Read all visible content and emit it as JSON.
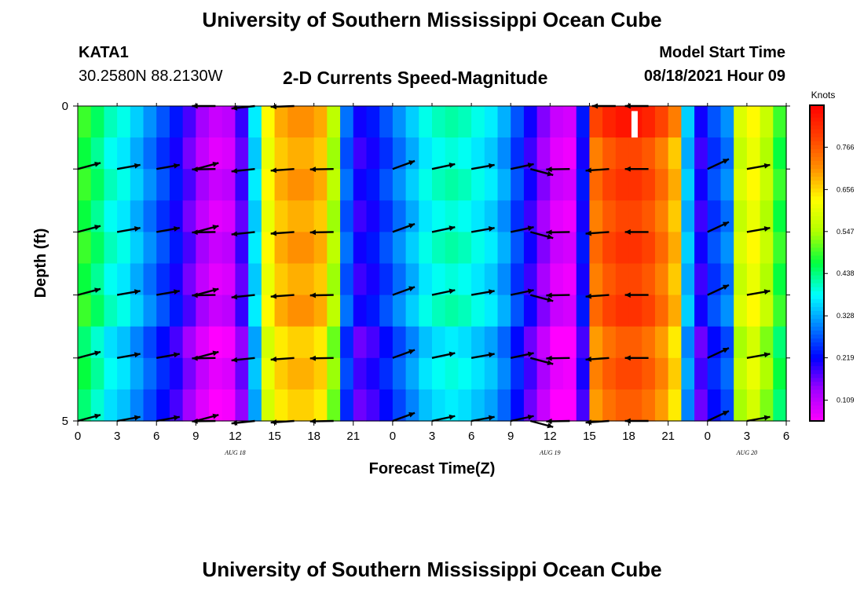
{
  "header": {
    "title": "University of Southern Mississippi Ocean Cube",
    "station": "KATA1",
    "coordinates": "30.2580N  88.2130W",
    "subtitle": "2-D Currents Speed-Magnitude",
    "model_label": "Model Start Time",
    "model_time": "08/18/2021 Hour 09"
  },
  "footer": {
    "title": "University of Southern Mississippi Ocean Cube"
  },
  "chart_data": {
    "type": "heatmap",
    "title": "2-D Currents Speed-Magnitude",
    "xlabel": "Forecast Time(Z)",
    "ylabel": "Depth (ft)",
    "x_ticks": [
      "0",
      "3",
      "6",
      "9",
      "12",
      "15",
      "18",
      "21",
      "0",
      "3",
      "6",
      "9",
      "12",
      "15",
      "18",
      "21",
      "0",
      "3",
      "6"
    ],
    "x_range_hours": [
      0,
      54
    ],
    "y_ticks": [
      "0",
      "5"
    ],
    "y_range_ft": [
      0,
      5
    ],
    "date_labels": [
      {
        "text": "AUG 18",
        "hour": 12
      },
      {
        "text": "AUG 19",
        "hour": 36
      },
      {
        "text": "AUG 20",
        "hour": 51
      }
    ],
    "colorbar": {
      "unit": "Knots",
      "ticks": [
        "0.109",
        "0.219",
        "0.328",
        "0.438",
        "0.547",
        "0.656",
        "0.766"
      ],
      "tick_values": [
        0.109,
        0.219,
        0.328,
        0.438,
        0.547,
        0.656,
        0.766
      ],
      "range": [
        0.055,
        0.875
      ]
    },
    "speed_by_hour": [
      0.48,
      0.44,
      0.4,
      0.38,
      0.34,
      0.3,
      0.26,
      0.22,
      0.17,
      0.12,
      0.09,
      0.1,
      0.18,
      0.36,
      0.62,
      0.68,
      0.7,
      0.7,
      0.68,
      0.55,
      0.28,
      0.2,
      0.22,
      0.26,
      0.3,
      0.34,
      0.38,
      0.4,
      0.41,
      0.4,
      0.38,
      0.36,
      0.32,
      0.26,
      0.2,
      0.14,
      0.09,
      0.08,
      0.22,
      0.74,
      0.78,
      0.8,
      0.8,
      0.78,
      0.74,
      0.68,
      0.34,
      0.2,
      0.26,
      0.3,
      0.58,
      0.62,
      0.56,
      0.48,
      0.42
    ],
    "speed_high_hours": [
      39,
      40,
      41,
      42,
      43,
      44,
      45
    ],
    "arrow_rows_ft": [
      1,
      2,
      3,
      4,
      5
    ],
    "arrows": [
      {
        "hour": 0,
        "dir_deg": 15
      },
      {
        "hour": 3,
        "dir_deg": 10
      },
      {
        "hour": 6,
        "dir_deg": 10
      },
      {
        "hour": 9,
        "dir_deg": 15
      },
      {
        "hour": 10.5,
        "dir_deg": 181
      },
      {
        "hour": 13.5,
        "dir_deg": 186
      },
      {
        "hour": 16.5,
        "dir_deg": 184
      },
      {
        "hour": 19.5,
        "dir_deg": 181
      },
      {
        "hour": 24,
        "dir_deg": 20
      },
      {
        "hour": 27,
        "dir_deg": 12
      },
      {
        "hour": 30,
        "dir_deg": 10
      },
      {
        "hour": 33,
        "dir_deg": 12
      },
      {
        "hour": 34.5,
        "dir_deg": 345
      },
      {
        "hour": 37.5,
        "dir_deg": 181
      },
      {
        "hour": 40.5,
        "dir_deg": 184
      },
      {
        "hour": 43.5,
        "dir_deg": 180
      },
      {
        "hour": 48,
        "dir_deg": 25
      },
      {
        "hour": 51,
        "dir_deg": 10
      }
    ],
    "surface_arrows": [
      {
        "hour": 10.5,
        "dir_deg": 180
      },
      {
        "hour": 13.5,
        "dir_deg": 186
      },
      {
        "hour": 16.5,
        "dir_deg": 182
      },
      {
        "hour": 41,
        "dir_deg": 180
      },
      {
        "hour": 43.5,
        "dir_deg": 180
      }
    ]
  }
}
